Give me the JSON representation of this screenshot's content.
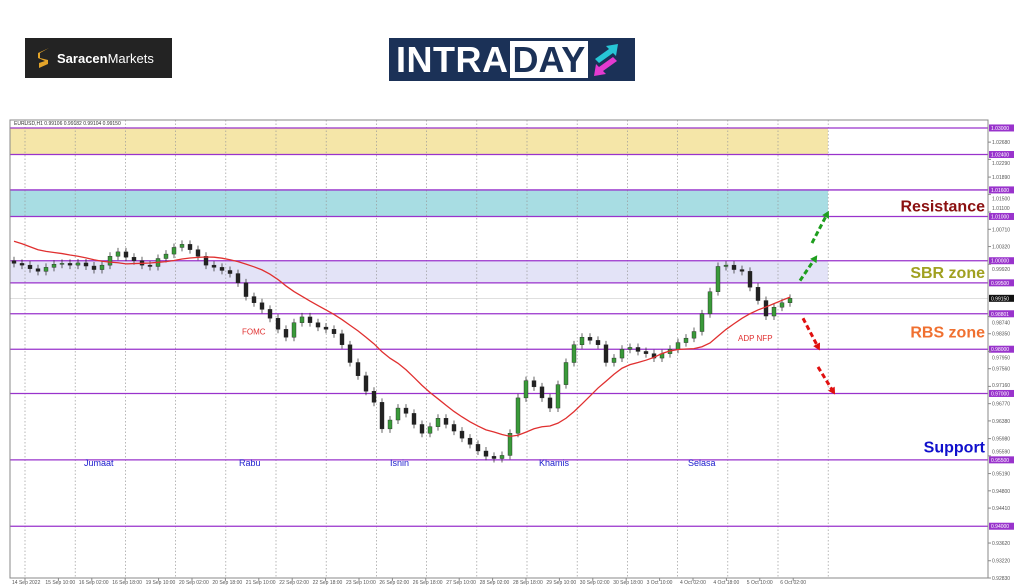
{
  "logos": {
    "saracen": {
      "bold": "Saracen",
      "light": "Markets"
    },
    "intraday": {
      "part1": "INTRA",
      "part2": "DAY"
    }
  },
  "chart_data": {
    "type": "candlestick",
    "symbol_header": "EURUSD,H1  0.99106 0.99182 0.99104 0.99150",
    "current_price": "0.99150",
    "ylim": [
      0.9283,
      1.0318
    ],
    "y_ticks": [
      "1.02680",
      "1.02290",
      "1.01890",
      "1.01500",
      "1.01100",
      "1.00710",
      "1.00320",
      "0.99920",
      "0.98740",
      "0.98350",
      "0.97950",
      "0.97560",
      "0.97160",
      "0.96770",
      "0.96380",
      "0.95980",
      "0.95590",
      "0.95190",
      "0.94800",
      "0.94410",
      "0.93620",
      "0.93220",
      "0.92830"
    ],
    "x_ticks": [
      "14 Sep 2022",
      "15 Sep 10:00",
      "16 Sep 02:00",
      "16 Sep 18:00",
      "19 Sep 10:00",
      "20 Sep 02:00",
      "20 Sep 18:00",
      "21 Sep 10:00",
      "22 Sep 02:00",
      "22 Sep 18:00",
      "23 Sep 10:00",
      "26 Sep 02:00",
      "26 Sep 18:00",
      "27 Sep 10:00",
      "28 Sep 02:00",
      "28 Sep 18:00",
      "29 Sep 10:00",
      "30 Sep 02:00",
      "30 Sep 18:00",
      "3 Oct 10:00",
      "4 Oct 02:00",
      "4 Oct 18:00",
      "5 Oct 10:00",
      "6 Oct 02:00"
    ],
    "closes": [
      0.9994,
      0.999,
      0.9982,
      0.9976,
      0.9985,
      0.9992,
      0.9994,
      0.999,
      0.9995,
      0.9988,
      0.998,
      0.999,
      1.001,
      1.002,
      1.0008,
      1.0,
      0.999,
      0.9987,
      1.0005,
      1.0015,
      1.003,
      1.0037,
      1.0025,
      1.001,
      0.999,
      0.9985,
      0.9978,
      0.9971,
      0.995,
      0.9919,
      0.9905,
      0.989,
      0.987,
      0.9845,
      0.9827,
      0.986,
      0.9873,
      0.986,
      0.985,
      0.9845,
      0.9835,
      0.981,
      0.977,
      0.974,
      0.9705,
      0.968,
      0.962,
      0.964,
      0.9667,
      0.9655,
      0.963,
      0.961,
      0.9625,
      0.9644,
      0.963,
      0.9615,
      0.9599,
      0.9585,
      0.957,
      0.9558,
      0.9553,
      0.956,
      0.961,
      0.969,
      0.9729,
      0.9715,
      0.969,
      0.9667,
      0.972,
      0.977,
      0.981,
      0.9827,
      0.982,
      0.981,
      0.977,
      0.978,
      0.98,
      0.9804,
      0.9795,
      0.979,
      0.978,
      0.979,
      0.98,
      0.9815,
      0.9825,
      0.984,
      0.988,
      0.993,
      0.9987,
      0.999,
      0.998,
      0.9976,
      0.994,
      0.991,
      0.9875,
      0.9895,
      0.9905,
      0.9915
    ],
    "first_open": 1.0,
    "moving_average_color": "#e03030",
    "levels": [
      {
        "price": 1.03,
        "label": "1.03000"
      },
      {
        "price": 1.024,
        "label": "1.02400"
      },
      {
        "price": 1.016,
        "label": "1.01600"
      },
      {
        "price": 1.01,
        "label": "1.01000"
      },
      {
        "price": 1.0,
        "label": "1.00000"
      },
      {
        "price": 0.995,
        "label": "0.99500"
      },
      {
        "price": 0.98801,
        "label": "0.98801"
      },
      {
        "price": 0.98,
        "label": "0.98000"
      },
      {
        "price": 0.97,
        "label": "0.97000"
      },
      {
        "price": 0.955,
        "label": "0.95500"
      },
      {
        "price": 0.94,
        "label": "0.94000"
      }
    ],
    "level_color": "#9933cc",
    "zones": [
      {
        "from": 1.024,
        "to": 1.03,
        "color": "#f5e6a8"
      },
      {
        "from": 1.01,
        "to": 1.016,
        "color": "#a8dde3"
      },
      {
        "from": 0.995,
        "to": 1.0,
        "color": "#e3e3f7"
      }
    ],
    "zone_labels": [
      {
        "text": "Resistance",
        "price": 1.0125,
        "color": "#8b1010"
      },
      {
        "text": "SBR zone",
        "price": 0.9975,
        "color": "#a0a020"
      },
      {
        "text": "RBS zone",
        "price": 0.984,
        "color": "#f07030"
      },
      {
        "text": "Support",
        "price": 0.958,
        "color": "#1010cc"
      }
    ],
    "event_labels": [
      {
        "text": "FOMC",
        "price": 0.984,
        "color": "#e03030"
      },
      {
        "text": "ADP NFP",
        "price": 0.9825,
        "color": "#e03030"
      }
    ],
    "day_labels": [
      "Jumaat",
      "Rabu",
      "Isnin",
      "Khamis",
      "Selasa"
    ],
    "day_label_color": "#1a1acc",
    "arrows": [
      {
        "direction": "up",
        "color": "#1e9e1e",
        "from": 0.9955,
        "to": 1.0005
      },
      {
        "direction": "up",
        "color": "#1e9e1e",
        "from": 1.004,
        "to": 1.0105
      },
      {
        "direction": "down",
        "color": "#e01010",
        "from": 0.987,
        "to": 0.9805
      },
      {
        "direction": "down",
        "color": "#e01010",
        "from": 0.976,
        "to": 0.9705
      }
    ]
  }
}
